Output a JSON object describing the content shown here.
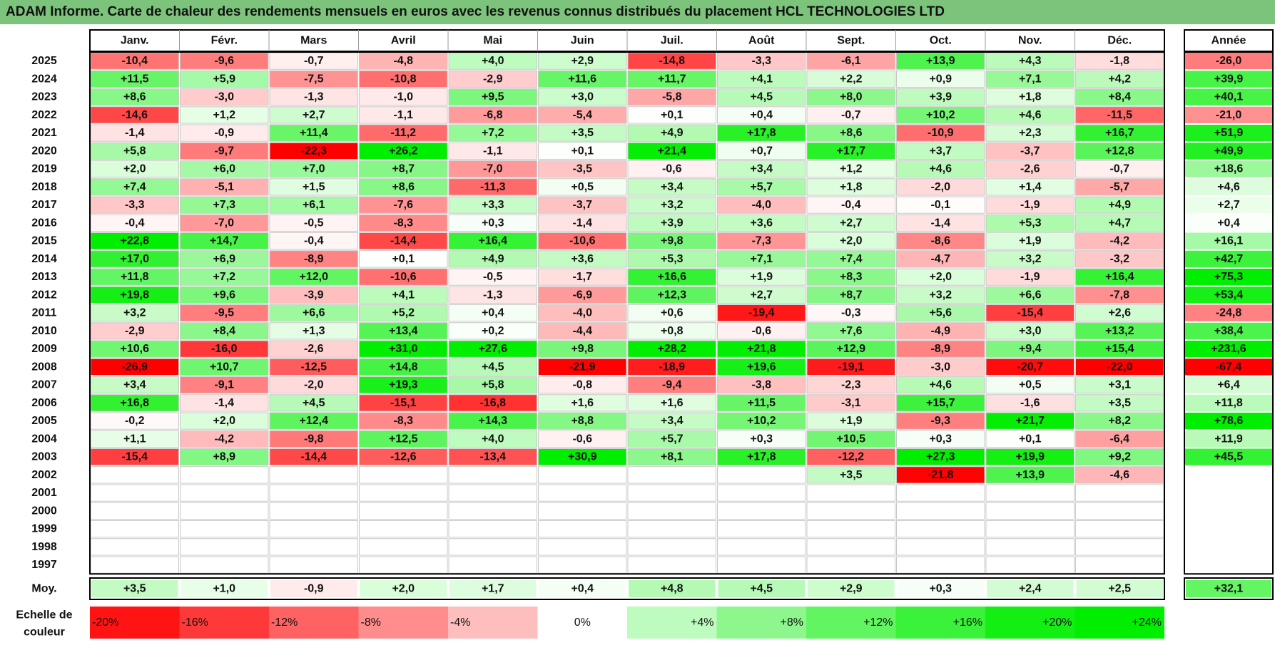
{
  "title": "ADAM Informe. Carte de chaleur des rendements mensuels en euros avec les revenus connus distribués du placement HCL TECHNOLOGIES LTD",
  "chart_data": {
    "type": "heatmap",
    "title": "ADAM Informe. Carte de chaleur des rendements mensuels en euros avec les revenus connus distribués du placement HCL TECHNOLOGIES LTD",
    "months": [
      "Janv.",
      "Févr.",
      "Mars",
      "Avril",
      "Mai",
      "Juin",
      "Juil.",
      "Août",
      "Sept.",
      "Oct.",
      "Nov.",
      "Déc."
    ],
    "annual_header": "Année",
    "rows": [
      {
        "year": "2025",
        "values": [
          "-10,4",
          "-9,6",
          "-0,7",
          "-4,8",
          "+4,0",
          "+2,9",
          "-14,8",
          "-3,3",
          "-6,1",
          "+13,9",
          "+4,3",
          "-1,8"
        ],
        "annual": "-26,0"
      },
      {
        "year": "2024",
        "values": [
          "+11,5",
          "+5,9",
          "-7,5",
          "-10,8",
          "-2,9",
          "+11,6",
          "+11,7",
          "+4,1",
          "+2,2",
          "+0,9",
          "+7,1",
          "+4,2"
        ],
        "annual": "+39,9"
      },
      {
        "year": "2023",
        "values": [
          "+8,6",
          "-3,0",
          "-1,3",
          "-1,0",
          "+9,5",
          "+3,0",
          "-5,8",
          "+4,5",
          "+8,0",
          "+3,9",
          "+1,8",
          "+8,4"
        ],
        "annual": "+40,1"
      },
      {
        "year": "2022",
        "values": [
          "-14,6",
          "+1,2",
          "+2,7",
          "-1,1",
          "-6,8",
          "-5,4",
          "+0,1",
          "+0,4",
          "-0,7",
          "+10,2",
          "+4,6",
          "-11,5"
        ],
        "annual": "-21,0"
      },
      {
        "year": "2021",
        "values": [
          "-1,4",
          "-0,9",
          "+11,4",
          "-11,2",
          "+7,2",
          "+3,5",
          "+4,9",
          "+17,8",
          "+8,6",
          "-10,9",
          "+2,3",
          "+16,7"
        ],
        "annual": "+51,9"
      },
      {
        "year": "2020",
        "values": [
          "+5,8",
          "-9,7",
          "-22,3",
          "+26,2",
          "-1,1",
          "+0,1",
          "+21,4",
          "+0,7",
          "+17,7",
          "+3,7",
          "-3,7",
          "+12,8"
        ],
        "annual": "+49,9"
      },
      {
        "year": "2019",
        "values": [
          "+2,0",
          "+6,0",
          "+7,0",
          "+8,7",
          "-7,0",
          "-3,5",
          "-0,6",
          "+3,4",
          "+1,2",
          "+4,6",
          "-2,6",
          "-0,7"
        ],
        "annual": "+18,6"
      },
      {
        "year": "2018",
        "values": [
          "+7,4",
          "-5,1",
          "+1,5",
          "+8,6",
          "-11,3",
          "+0,5",
          "+3,4",
          "+5,7",
          "+1,8",
          "-2,0",
          "+1,4",
          "-5,7"
        ],
        "annual": "+4,6"
      },
      {
        "year": "2017",
        "values": [
          "-3,3",
          "+7,3",
          "+6,1",
          "-7,6",
          "+3,3",
          "-3,7",
          "+3,2",
          "-4,0",
          "-0,4",
          "-0,1",
          "-1,9",
          "+4,9"
        ],
        "annual": "+2,7"
      },
      {
        "year": "2016",
        "values": [
          "-0,4",
          "-7,0",
          "-0,5",
          "-8,3",
          "+0,3",
          "-1,4",
          "+3,9",
          "+3,6",
          "+2,7",
          "-1,4",
          "+5,3",
          "+4,7"
        ],
        "annual": "+0,4"
      },
      {
        "year": "2015",
        "values": [
          "+22,8",
          "+14,7",
          "-0,4",
          "-14,4",
          "+16,4",
          "-10,6",
          "+9,8",
          "-7,3",
          "+2,0",
          "-8,6",
          "+1,9",
          "-4,2"
        ],
        "annual": "+16,1"
      },
      {
        "year": "2014",
        "values": [
          "+17,0",
          "+6,9",
          "-8,9",
          "+0,1",
          "+4,9",
          "+3,6",
          "+5,3",
          "+7,1",
          "+7,4",
          "-4,7",
          "+3,2",
          "-3,2"
        ],
        "annual": "+42,7"
      },
      {
        "year": "2013",
        "values": [
          "+11,8",
          "+7,2",
          "+12,0",
          "-10,6",
          "-0,5",
          "-1,7",
          "+16,6",
          "+1,9",
          "+8,3",
          "+2,0",
          "-1,9",
          "+16,4"
        ],
        "annual": "+75,3"
      },
      {
        "year": "2012",
        "values": [
          "+19,8",
          "+9,6",
          "-3,9",
          "+4,1",
          "-1,3",
          "-6,9",
          "+12,3",
          "+2,7",
          "+8,7",
          "+3,2",
          "+6,6",
          "-7,8"
        ],
        "annual": "+53,4"
      },
      {
        "year": "2011",
        "values": [
          "+3,2",
          "-9,5",
          "+6,6",
          "+5,2",
          "+0,4",
          "-4,0",
          "+0,6",
          "-19,4",
          "-0,3",
          "+5,6",
          "-15,4",
          "+2,6"
        ],
        "annual": "-24,8"
      },
      {
        "year": "2010",
        "values": [
          "-2,9",
          "+8,4",
          "+1,3",
          "+13,4",
          "+0,2",
          "-4,4",
          "+0,8",
          "-0,6",
          "+7,6",
          "-4,9",
          "+3,0",
          "+13,2"
        ],
        "annual": "+38,4"
      },
      {
        "year": "2009",
        "values": [
          "+10,6",
          "-16,0",
          "-2,6",
          "+31,0",
          "+27,6",
          "+9,8",
          "+28,2",
          "+21,8",
          "+12,9",
          "-8,9",
          "+9,4",
          "+15,4"
        ],
        "annual": "+231,6"
      },
      {
        "year": "2008",
        "values": [
          "-26,9",
          "+10,7",
          "-12,5",
          "+14,8",
          "+4,5",
          "-21,9",
          "-18,9",
          "+19,6",
          "-19,1",
          "-3,0",
          "-20,7",
          "-22,0"
        ],
        "annual": "-67,4"
      },
      {
        "year": "2007",
        "values": [
          "+3,4",
          "-9,1",
          "-2,0",
          "+19,3",
          "+5,8",
          "-0,8",
          "-9,4",
          "-3,8",
          "-2,3",
          "+4,6",
          "+0,5",
          "+3,1"
        ],
        "annual": "+6,4"
      },
      {
        "year": "2006",
        "values": [
          "+16,8",
          "-1,4",
          "+4,5",
          "-15,1",
          "-16,8",
          "+1,6",
          "+1,6",
          "+11,5",
          "-3,1",
          "+15,7",
          "-1,6",
          "+3,5"
        ],
        "annual": "+11,8"
      },
      {
        "year": "2005",
        "values": [
          "-0,2",
          "+2,0",
          "+12,4",
          "-8,3",
          "+14,3",
          "+8,8",
          "+3,4",
          "+10,2",
          "+1,9",
          "-9,3",
          "+21,7",
          "+8,2"
        ],
        "annual": "+78,6"
      },
      {
        "year": "2004",
        "values": [
          "+1,1",
          "-4,2",
          "-9,8",
          "+12,5",
          "+4,0",
          "-0,6",
          "+5,7",
          "+0,3",
          "+10,5",
          "+0,3",
          "+0,1",
          "-6,4"
        ],
        "annual": "+11,9"
      },
      {
        "year": "2003",
        "values": [
          "-15,4",
          "+8,9",
          "-14,4",
          "-12,6",
          "-13,4",
          "+30,9",
          "+8,1",
          "+17,8",
          "-12,2",
          "+27,3",
          "+19,9",
          "+9,2"
        ],
        "annual": "+45,5"
      },
      {
        "year": "2002",
        "values": [
          "",
          "",
          "",
          "",
          "",
          "",
          "",
          "",
          "+3,5",
          "-21,8",
          "+13,9",
          "-4,6"
        ],
        "annual": ""
      },
      {
        "year": "2001",
        "values": [
          "",
          "",
          "",
          "",
          "",
          "",
          "",
          "",
          "",
          "",
          "",
          ""
        ],
        "annual": ""
      },
      {
        "year": "2000",
        "values": [
          "",
          "",
          "",
          "",
          "",
          "",
          "",
          "",
          "",
          "",
          "",
          ""
        ],
        "annual": ""
      },
      {
        "year": "1999",
        "values": [
          "",
          "",
          "",
          "",
          "",
          "",
          "",
          "",
          "",
          "",
          "",
          ""
        ],
        "annual": ""
      },
      {
        "year": "1998",
        "values": [
          "",
          "",
          "",
          "",
          "",
          "",
          "",
          "",
          "",
          "",
          "",
          ""
        ],
        "annual": ""
      },
      {
        "year": "1997",
        "values": [
          "",
          "",
          "",
          "",
          "",
          "",
          "",
          "",
          "",
          "",
          "",
          ""
        ],
        "annual": ""
      }
    ],
    "average": {
      "label": "Moy.",
      "values": [
        "+3,5",
        "+1,0",
        "-0,9",
        "+2,0",
        "+1,7",
        "+0,4",
        "+4,8",
        "+4,5",
        "+2,9",
        "+0,3",
        "+2,4",
        "+2,5"
      ],
      "annual": "+32,1"
    },
    "color_scale": {
      "label_line1": "Echelle de",
      "label_line2": "couleur",
      "stops": [
        "-20%",
        "-16%",
        "-12%",
        "-8%",
        "-4%",
        "0%",
        "+4%",
        "+8%",
        "+12%",
        "+16%",
        "+20%",
        "+24%"
      ]
    },
    "colors": {
      "negative_max": "#ff0000",
      "positive_max": "#00ee00",
      "neutral": "#ffffff",
      "title_bg": "#7cc47c"
    }
  }
}
